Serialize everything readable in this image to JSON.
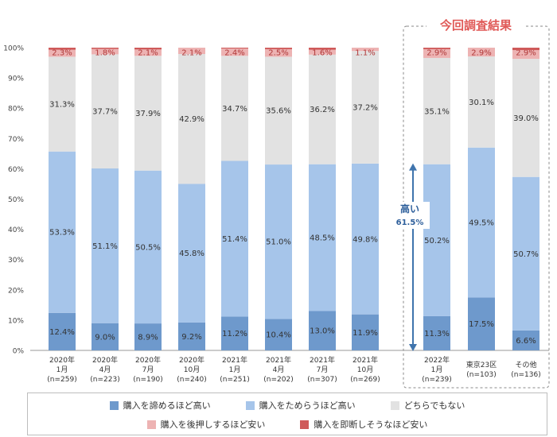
{
  "chart_data": {
    "type": "bar",
    "stacked": true,
    "title": "",
    "ylim": [
      0,
      100
    ],
    "yticks": [
      "0%",
      "10%",
      "20%",
      "30%",
      "40%",
      "50%",
      "60%",
      "70%",
      "80%",
      "90%",
      "100%"
    ],
    "categories": [
      [
        "2020年",
        "1月",
        "(n=259)"
      ],
      [
        "2020年",
        "4月",
        "(n=223)"
      ],
      [
        "2020年",
        "7月",
        "(n=190)"
      ],
      [
        "2020年",
        "10月",
        "(n=240)"
      ],
      [
        "2021年",
        "1月",
        "(n=251)"
      ],
      [
        "2021年",
        "4月",
        "(n=202)"
      ],
      [
        "2021年",
        "7月",
        "(n=307)"
      ],
      [
        "2021年",
        "10月",
        "(n=269)"
      ],
      [
        "2022年",
        "1月",
        "(n=239)"
      ],
      [
        "東京23区",
        "(n=103)"
      ],
      [
        "その他",
        "(n=136)"
      ]
    ],
    "series": [
      {
        "name": "購入を諦めるほど高い",
        "color": "#6e99cc",
        "values": [
          12.4,
          9.0,
          8.9,
          9.2,
          11.2,
          10.4,
          13.0,
          11.9,
          11.3,
          17.5,
          6.6
        ],
        "labels": [
          "12.4%",
          "9.0%",
          "8.9%",
          "9.2%",
          "11.2%",
          "10.4%",
          "13.0%",
          "11.9%",
          "11.3%",
          "17.5%",
          "6.6%"
        ]
      },
      {
        "name": "購入をためらうほど高い",
        "color": "#a6c5ea",
        "values": [
          53.3,
          51.1,
          50.5,
          45.8,
          51.4,
          51.0,
          48.5,
          49.8,
          50.2,
          49.5,
          50.7
        ],
        "labels": [
          "53.3%",
          "51.1%",
          "50.5%",
          "45.8%",
          "51.4%",
          "51.0%",
          "48.5%",
          "49.8%",
          "50.2%",
          "49.5%",
          "50.7%"
        ]
      },
      {
        "name": "どちらでもない",
        "color": "#e2e2e2",
        "values": [
          31.3,
          37.7,
          37.9,
          42.9,
          34.7,
          35.6,
          36.2,
          37.2,
          35.1,
          30.1,
          39.0
        ],
        "labels": [
          "31.3%",
          "37.7%",
          "37.9%",
          "42.9%",
          "34.7%",
          "35.6%",
          "36.2%",
          "37.2%",
          "35.1%",
          "30.1%",
          "39.0%"
        ]
      },
      {
        "name": "購入を後押しするほど安い",
        "color": "#edb3b3",
        "values": [
          2.3,
          1.8,
          2.1,
          2.1,
          2.4,
          2.5,
          1.6,
          1.1,
          2.9,
          2.9,
          2.9
        ],
        "labels": [
          "2.3%",
          "1.8%",
          "2.1%",
          "2.1%",
          "2.4%",
          "2.5%",
          "1.6%",
          "1.1%",
          "2.9%",
          "2.9%",
          "2.9%"
        ]
      },
      {
        "name": "購入を即断しそうなほど安い",
        "color": "#cf5a5a",
        "values": [
          0.7,
          0.4,
          0.6,
          0.0,
          0.3,
          0.5,
          0.7,
          0.2,
          0.5,
          0.0,
          0.8
        ],
        "labels": [
          "",
          "",
          "",
          "",
          "",
          "",
          "",
          "",
          "",
          "",
          ""
        ]
      }
    ],
    "annotation": {
      "text_line1": "高い",
      "text_line2": "61.5%",
      "arrow": "double-vertical",
      "category_index": 8
    },
    "callout_title": "今回調査結果",
    "legend": "bottom"
  }
}
